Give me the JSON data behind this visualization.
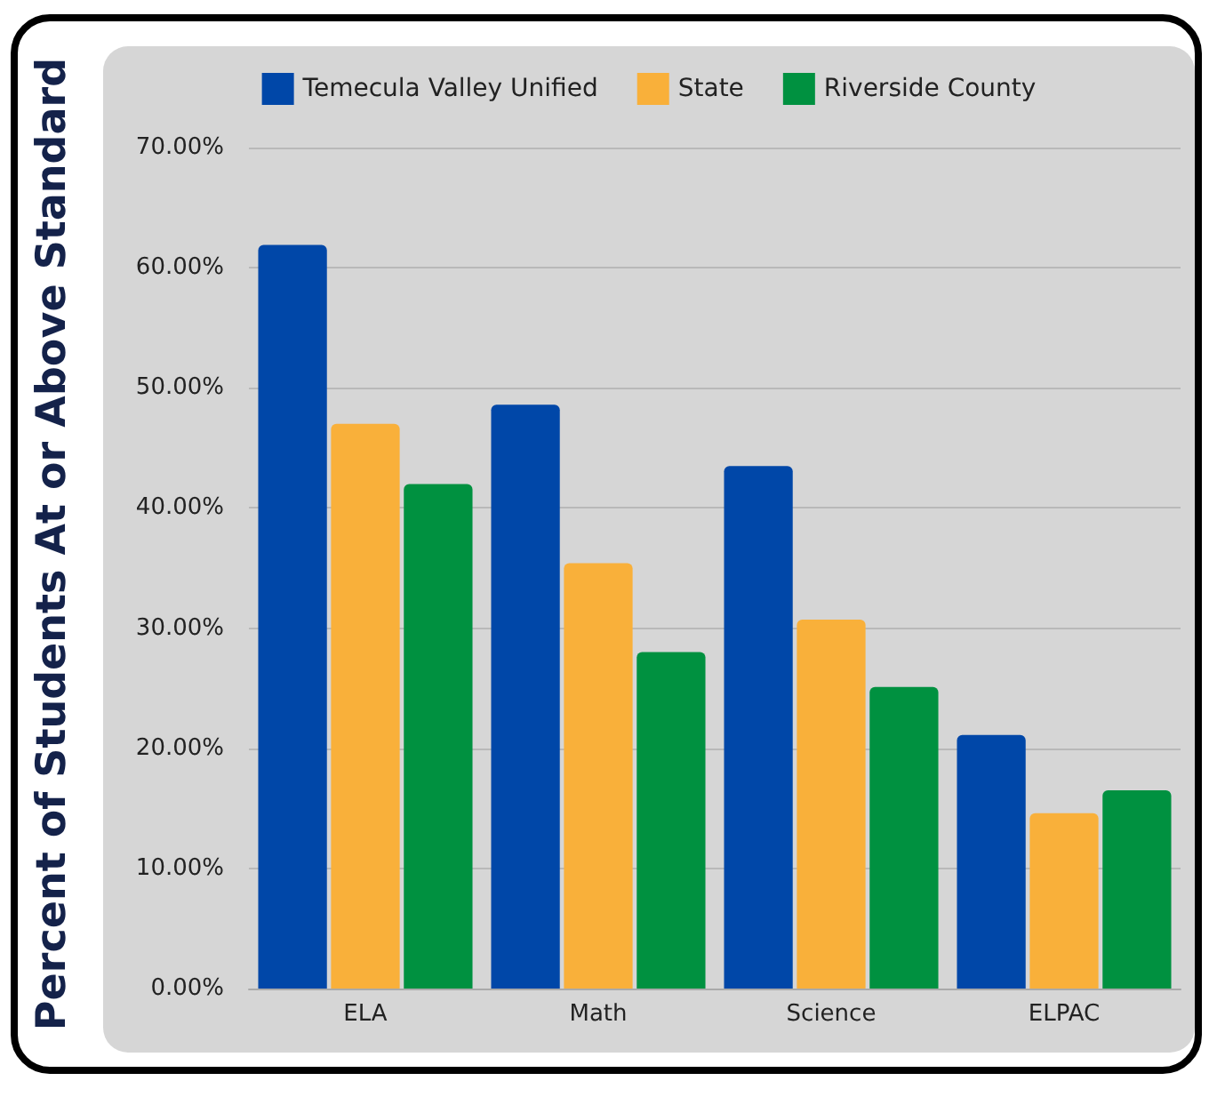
{
  "chart_data": {
    "type": "bar",
    "ylabel": "Percent of Students At or Above Standard",
    "categories": [
      "ELA",
      "Math",
      "Science",
      "ELPAC"
    ],
    "series": [
      {
        "name": "Temecula Valley Unified",
        "color": "#0047a8",
        "values": [
          61.9,
          48.6,
          43.5,
          21.1
        ]
      },
      {
        "name": "State",
        "color": "#f9b03a",
        "values": [
          47.0,
          35.4,
          30.7,
          14.6
        ]
      },
      {
        "name": "Riverside County",
        "color": "#009140",
        "values": [
          42.0,
          28.0,
          25.1,
          16.5
        ]
      }
    ],
    "ylim": [
      0,
      70
    ],
    "yticks": [
      {
        "value": 0,
        "label": "0.00%"
      },
      {
        "value": 10,
        "label": "10.00%"
      },
      {
        "value": 20,
        "label": "20.00%"
      },
      {
        "value": 30,
        "label": "30.00%"
      },
      {
        "value": 40,
        "label": "40.00%"
      },
      {
        "value": 50,
        "label": "50.00%"
      },
      {
        "value": 60,
        "label": "60.00%"
      },
      {
        "value": 70,
        "label": "70.00%"
      }
    ],
    "grid": "y",
    "legend": "top"
  }
}
